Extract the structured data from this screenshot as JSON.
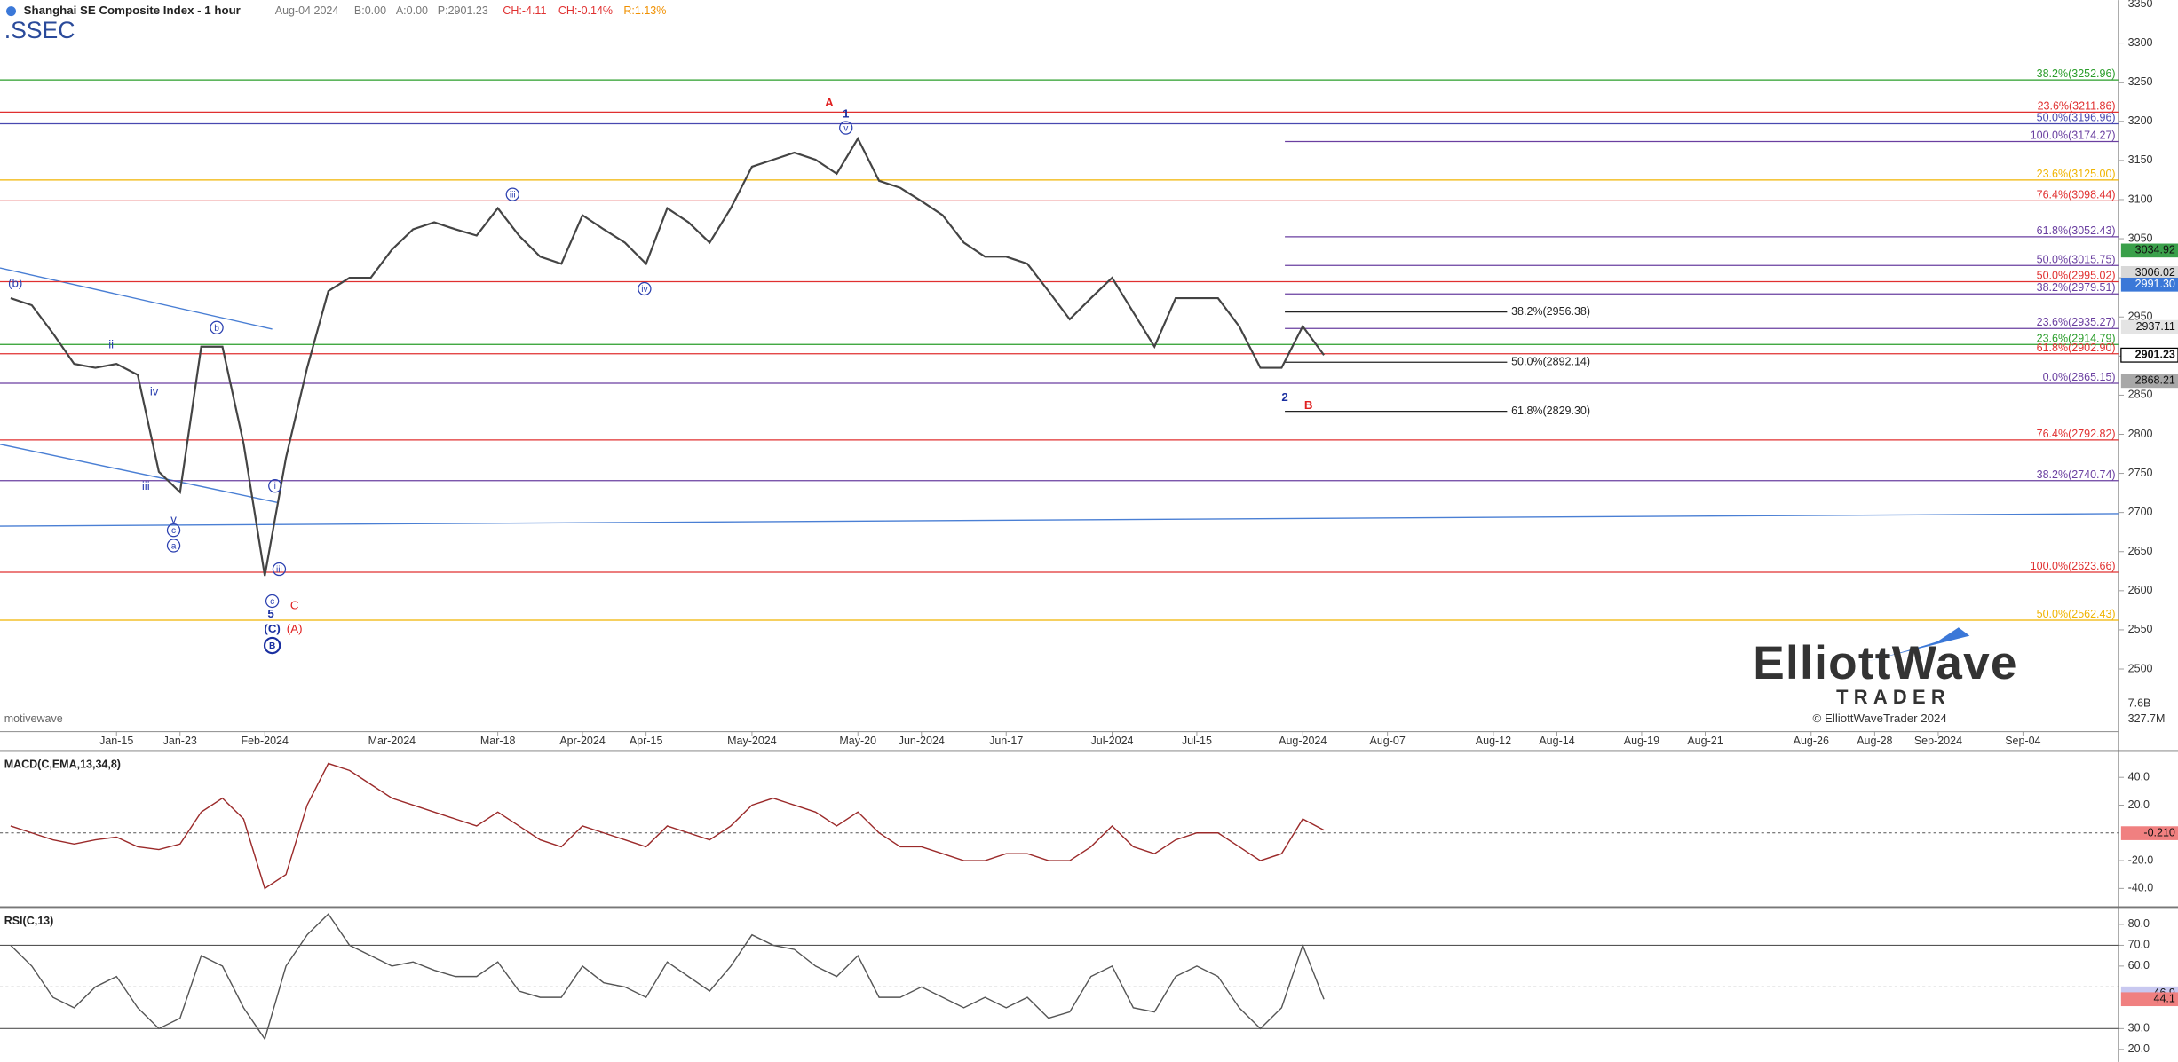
{
  "chart_data": [
    {
      "type": "line",
      "title": "Shanghai SE Composite Index - 1 hour",
      "symbol": ".SSEC",
      "watermark": "motivewave",
      "header": [
        {
          "text": "Aug-04 2024",
          "color": "#777777"
        },
        {
          "text": "B:0.00",
          "color": "#777777"
        },
        {
          "text": "A:0.00",
          "color": "#777777"
        },
        {
          "text": "P:2901.23",
          "color": "#777777"
        },
        {
          "text": "CH:-4.11",
          "color": "#e03030"
        },
        {
          "text": "CH:-0.14%",
          "color": "#e03030"
        },
        {
          "text": "R:1.13%",
          "color": "#f09000"
        }
      ],
      "logo": {
        "name": "ElliottWave",
        "sub": "TRADER",
        "copyright": "© ElliottWaveTrader 2024"
      },
      "categories": [
        null,
        null,
        null,
        null,
        null,
        "Jan-15",
        null,
        null,
        "Jan-23",
        null,
        null,
        null,
        "Feb-2024",
        null,
        null,
        null,
        null,
        null,
        "Mar-2024",
        null,
        null,
        null,
        null,
        "Mar-18",
        null,
        null,
        null,
        "Apr-2024",
        null,
        null,
        "Apr-15",
        null,
        null,
        null,
        null,
        "May-2024",
        null,
        null,
        null,
        null,
        "May-20",
        null,
        null,
        "Jun-2024",
        null,
        null,
        null,
        "Jun-17",
        null,
        null,
        null,
        null,
        "Jul-2024",
        null,
        null,
        null,
        "Jul-15",
        null,
        null,
        null,
        null,
        "Aug-2024",
        null,
        null,
        null,
        "Aug-07",
        null,
        null,
        null,
        null,
        "Aug-12",
        null,
        null,
        "Aug-14",
        null,
        null,
        null,
        "Aug-19",
        null,
        null,
        "Aug-21",
        null,
        null,
        null,
        null,
        "Aug-26",
        null,
        null,
        "Aug-28",
        null,
        null,
        "Sep-2024",
        null,
        null,
        null,
        "Sep-04",
        null,
        null,
        null,
        null
      ],
      "values": [
        2974,
        2965,
        2929,
        2890,
        2885,
        2890,
        2876,
        2752,
        2726,
        2912,
        2912,
        2788,
        2619,
        2770,
        2885,
        2983,
        3000,
        3000,
        3036,
        3062,
        3071,
        3062,
        3054,
        3089,
        3054,
        3027,
        3018,
        3080,
        3062,
        3045,
        3018,
        3089,
        3071,
        3045,
        3089,
        3142,
        3151,
        3160,
        3151,
        3133,
        3178,
        3124,
        3115,
        3098,
        3080,
        3045,
        3027,
        3027,
        3018,
        2983,
        2947,
        2974,
        3000,
        2956,
        2912,
        2974,
        2974,
        2974,
        2938,
        2885,
        2885,
        2938,
        2901.23,
        null,
        null,
        null,
        null,
        null,
        null,
        null,
        null,
        null,
        null,
        null,
        null,
        null,
        null,
        null,
        null,
        null,
        null,
        null,
        null,
        null,
        null,
        null,
        null,
        null,
        null,
        null,
        null,
        null,
        null,
        null,
        null,
        null,
        null,
        null,
        null,
        null
      ],
      "color": "#444444",
      "ylim": [
        2420,
        3355
      ],
      "yticks": [
        3350,
        3300,
        3250,
        3200,
        3150,
        3100,
        3050,
        3000,
        2950,
        2900,
        2850,
        2800,
        2750,
        2700,
        2650,
        2600,
        2550,
        2500
      ],
      "volume_ticks": [
        "7.6B",
        "327.7M"
      ],
      "fib_levels": [
        {
          "value": 3252.96,
          "label": "38.2%(3252.96)",
          "color": "#2a9d2a"
        },
        {
          "value": 3211.86,
          "label": "23.6%(3211.86)",
          "color": "#e03030"
        },
        {
          "value": 3196.96,
          "label": "50.0%(3196.96)",
          "color": "#4848b0"
        },
        {
          "value": 3125.0,
          "label": "23.6%(3125.00)",
          "color": "#f0b400"
        },
        {
          "value": 3098.44,
          "label": "76.4%(3098.44)",
          "color": "#e03030"
        },
        {
          "value": 2995.02,
          "label": "50.0%(2995.02)",
          "color": "#e03030"
        },
        {
          "value": 2914.79,
          "label": "23.6%(2914.79)",
          "color": "#2a9d2a"
        },
        {
          "value": 2902.9,
          "label": "61.8%(2902.90)",
          "color": "#e03030"
        },
        {
          "value": 2865.15,
          "label": "0.0%(2865.15)",
          "color": "#6a3fa0"
        },
        {
          "value": 2792.82,
          "label": "76.4%(2792.82)",
          "color": "#e03030"
        },
        {
          "value": 2740.74,
          "label": "38.2%(2740.74)",
          "color": "#6a3fa0"
        },
        {
          "value": 2623.66,
          "label": "100.0%(2623.66)",
          "color": "#e03030"
        },
        {
          "value": 2562.43,
          "label": "50.0%(2562.43)",
          "color": "#f0b400"
        }
      ],
      "projection_levels": [
        {
          "value": 3174.27,
          "label": "100.0%(3174.27)",
          "color": "#6a3fa0"
        },
        {
          "value": 3052.43,
          "label": "61.8%(3052.43)",
          "color": "#6a3fa0"
        },
        {
          "value": 3015.75,
          "label": "50.0%(3015.75)",
          "color": "#6a3fa0"
        },
        {
          "value": 2979.51,
          "label": "38.2%(2979.51)",
          "color": "#6a3fa0"
        },
        {
          "value": 2935.27,
          "label": "23.6%(2935.27)",
          "color": "#6a3fa0"
        }
      ],
      "retracement_levels": [
        {
          "value": 2956.38,
          "label": "38.2%(2956.38)",
          "color": "#222222"
        },
        {
          "value": 2892.14,
          "label": "50.0%(2892.14)",
          "color": "#222222"
        },
        {
          "value": 2829.3,
          "label": "61.8%(2829.30)",
          "color": "#222222"
        }
      ],
      "price_tags": [
        {
          "value": 3034.92,
          "label": "3034.92",
          "color": "#3aa04a"
        },
        {
          "value": 3006.02,
          "label": "3006.02",
          "color": "#d8d8d8"
        },
        {
          "value": 2991.3,
          "label": "2991.30",
          "color": "#3b78d8"
        },
        {
          "value": 2937.11,
          "label": "2937.11",
          "color": "#e4e4e4"
        },
        {
          "value": 2901.23,
          "label": "2901.23",
          "color": "#ffffff"
        },
        {
          "value": 2868.21,
          "label": "2868.21",
          "color": "#a8a8a8"
        }
      ],
      "wave_labels": [
        "(b)",
        "ii",
        "iv",
        "iii",
        "v",
        "c",
        "a",
        "b",
        "i",
        "iii",
        "c",
        "5",
        "C",
        "(C)",
        "(A)",
        "B",
        "iii",
        "iv",
        "A",
        "1",
        "v",
        "2",
        "B"
      ]
    },
    {
      "type": "line",
      "title": "MACD(C,EMA,13,34,8)",
      "values": [
        5,
        0,
        -5,
        -8,
        -5,
        -3,
        -10,
        -12,
        -8,
        15,
        25,
        10,
        -40,
        -30,
        20,
        50,
        45,
        35,
        25,
        20,
        15,
        10,
        5,
        15,
        5,
        -5,
        -10,
        5,
        0,
        -5,
        -10,
        5,
        0,
        -5,
        5,
        20,
        25,
        20,
        15,
        5,
        15,
        0,
        -10,
        -10,
        -15,
        -20,
        -20,
        -15,
        -15,
        -20,
        -20,
        -10,
        5,
        -10,
        -15,
        -5,
        0,
        0,
        -10,
        -20,
        -15,
        10,
        2,
        null,
        null,
        null,
        null,
        null,
        null,
        null,
        null,
        null,
        null,
        null,
        null,
        null,
        null,
        null,
        null,
        null,
        null,
        null,
        null,
        null,
        null,
        null,
        null,
        null,
        null,
        null,
        null,
        null,
        null,
        null,
        null,
        null,
        null,
        null,
        null,
        null
      ],
      "color": "#9b2a2a",
      "ylim": [
        -52,
        58
      ],
      "yticks": [
        {
          "value": 40,
          "label": "40.0"
        },
        {
          "value": 20,
          "label": "20.0"
        },
        {
          "value": -20,
          "label": "-20.0"
        },
        {
          "value": -40,
          "label": "-40.0"
        }
      ],
      "guides": [
        0
      ],
      "tags": [
        {
          "value": -0.21,
          "label": "-0.210",
          "color": "#f08080"
        }
      ]
    },
    {
      "type": "line",
      "title": "RSI(C,13)",
      "values": [
        70,
        60,
        45,
        40,
        50,
        55,
        40,
        30,
        35,
        65,
        60,
        40,
        25,
        60,
        75,
        85,
        70,
        65,
        60,
        62,
        58,
        55,
        55,
        62,
        48,
        45,
        45,
        60,
        52,
        50,
        45,
        62,
        55,
        48,
        60,
        75,
        70,
        68,
        60,
        55,
        65,
        45,
        45,
        50,
        45,
        40,
        45,
        40,
        45,
        35,
        38,
        55,
        60,
        40,
        38,
        55,
        60,
        55,
        40,
        30,
        40,
        70,
        44.1,
        null,
        null,
        null,
        null,
        null,
        null,
        null,
        null,
        null,
        null,
        null,
        null,
        null,
        null,
        null,
        null,
        null,
        null,
        null,
        null,
        null,
        null,
        null,
        null,
        null,
        null,
        null,
        null,
        null,
        null,
        null,
        null,
        null,
        null,
        null,
        null,
        null
      ],
      "color": "#555555",
      "ylim": [
        14,
        87.3
      ],
      "yticks": [
        {
          "value": 80,
          "label": "80.0"
        },
        {
          "value": 70,
          "label": "70.0"
        },
        {
          "value": 60,
          "label": "60.0"
        },
        {
          "value": 30,
          "label": "30.0"
        },
        {
          "value": 20,
          "label": "20.0"
        }
      ],
      "guides": [
        70,
        50,
        30
      ],
      "tags": [
        {
          "value": 46.9,
          "label": "46.9",
          "color": "#c8c8f0"
        },
        {
          "value": 44.1,
          "label": "44.1",
          "color": "#f08080"
        }
      ]
    }
  ]
}
